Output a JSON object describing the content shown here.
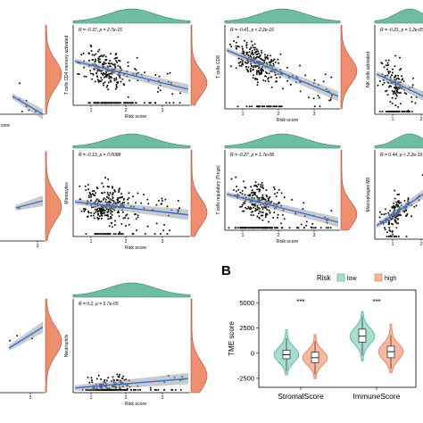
{
  "chart_data": [
    {
      "type": "scatter",
      "panel": "r1c1",
      "ylabel": "",
      "xlabel": "core",
      "stat_text": "",
      "xticks": []
    },
    {
      "type": "scatter",
      "panel": "r1c2",
      "ylabel": "T cells CD4 memory activated",
      "xlabel": "Risk score",
      "stat_text": "R = -0.37, p = 2.7e-15",
      "xticks": [
        "1",
        "2",
        "3"
      ]
    },
    {
      "type": "scatter",
      "panel": "r1c3",
      "ylabel": "T cells CD8",
      "xlabel": "Risk score",
      "stat_text": "R = -0.41, p < 2.2e-16",
      "xticks": [
        "1",
        "2",
        "3"
      ]
    },
    {
      "type": "scatter",
      "panel": "r1c4",
      "ylabel": "NK cells activated",
      "xlabel": "Risk score",
      "stat_text": "R = -0.21, p = 1.2e-05",
      "xticks": [
        "1",
        "2"
      ]
    },
    {
      "type": "scatter",
      "panel": "r2c1",
      "ylabel": "",
      "xlabel": "",
      "stat_text": "",
      "xticks": [
        "3"
      ]
    },
    {
      "type": "scatter",
      "panel": "r2c2",
      "ylabel": "Monocytes",
      "xlabel": "Risk score",
      "stat_text": "R = -0.13, p = 0.0088",
      "xticks": [
        "1",
        "2",
        "3"
      ]
    },
    {
      "type": "scatter",
      "panel": "r2c3",
      "ylabel": "T cells regulatory (Tregs)",
      "xlabel": "Risk score",
      "stat_text": "R = -0.27, p = 1.7e-08",
      "xticks": [
        "1",
        "2",
        "3"
      ]
    },
    {
      "type": "scatter",
      "panel": "r2c4",
      "ylabel": "Macrophages M0",
      "xlabel": "Risk score",
      "stat_text": "R = 0.44, p < 2.2e-16",
      "xticks": [
        "1",
        "2"
      ]
    },
    {
      "type": "scatter",
      "panel": "r3c1",
      "ylabel": "",
      "xlabel": "",
      "stat_text": "",
      "xticks": [
        "3"
      ]
    },
    {
      "type": "scatter",
      "panel": "r3c2",
      "ylabel": "Neutrophils",
      "xlabel": "Risk score",
      "stat_text": "R = 0.2, p = 5.7e-05",
      "xticks": [
        "1",
        "2",
        "3"
      ]
    },
    {
      "type": "violin",
      "panel": "B",
      "panel_label": "B",
      "ylabel": "TME score",
      "yticks": [
        -2500,
        0,
        2500,
        5000
      ],
      "ylim": [
        -3400,
        6300
      ],
      "categories": [
        "StromalScore",
        "ImmuneScore"
      ],
      "legend": {
        "title": "Risk",
        "entries": [
          "low",
          "high"
        ],
        "position": "top"
      },
      "colors": {
        "low": "#5fbfa5",
        "high": "#ee8867",
        "low_fill": "#a8ddcf",
        "high_fill": "#f5b99f"
      },
      "significance": [
        "***",
        "***"
      ],
      "groups": [
        {
          "category": "StromalScore",
          "risk": "low",
          "median": -150,
          "q1": -550,
          "q3": 300,
          "min": -1750,
          "max": 1500,
          "violin_min": -2150,
          "violin_max": 2350
        },
        {
          "category": "StromalScore",
          "risk": "high",
          "median": -450,
          "q1": -950,
          "q3": 100,
          "min": -2100,
          "max": 1200,
          "violin_min": -2550,
          "violin_max": 1850
        },
        {
          "category": "ImmuneScore",
          "risk": "low",
          "median": 1700,
          "q1": 1100,
          "q3": 2400,
          "min": -200,
          "max": 3650,
          "violin_min": -750,
          "violin_max": 4150
        },
        {
          "category": "ImmuneScore",
          "risk": "high",
          "median": 150,
          "q1": -450,
          "q3": 700,
          "min": -1550,
          "max": 1800,
          "violin_min": -1950,
          "violin_max": 2900
        }
      ]
    }
  ]
}
